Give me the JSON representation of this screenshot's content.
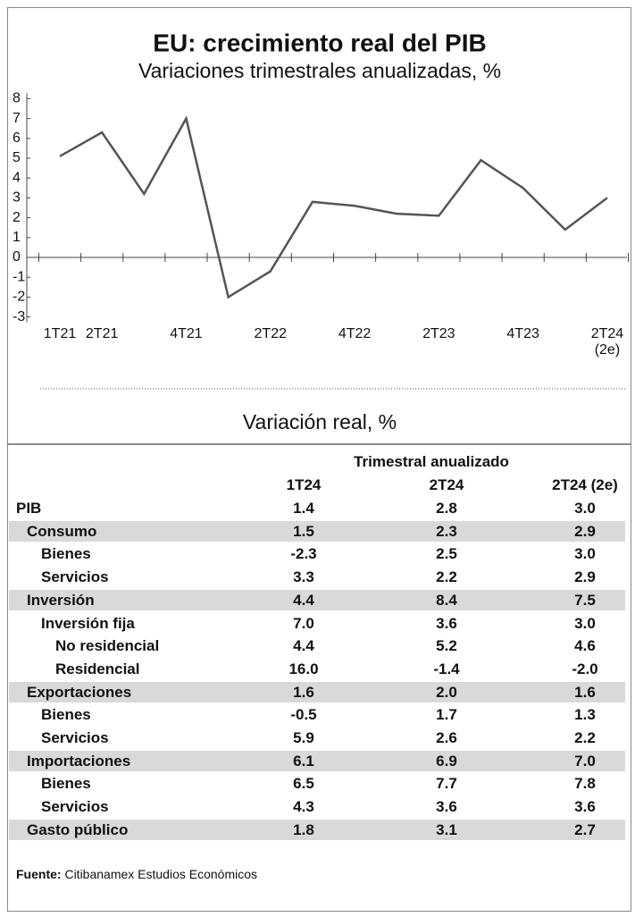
{
  "chart_data": {
    "type": "line",
    "title": "EU: crecimiento real del PIB",
    "subtitle": "Variaciones trimestrales anualizadas, %",
    "categories": [
      "1T21",
      "2T21",
      null,
      "4T21",
      null,
      "2T22",
      null,
      "4T22",
      null,
      "2T23",
      null,
      "4T23",
      null,
      "2T24 (2e)"
    ],
    "series": [
      {
        "name": "PIB",
        "color": "#555555",
        "values": [
          5.1,
          6.3,
          3.2,
          7.0,
          -2.0,
          -0.7,
          2.8,
          2.6,
          2.2,
          2.1,
          4.9,
          3.5,
          1.4,
          3.0
        ]
      }
    ],
    "ylim": [
      -3,
      8
    ],
    "yticks": [
      8,
      7,
      6,
      5,
      4,
      3,
      2,
      1,
      0,
      -1,
      -2,
      -3
    ]
  },
  "table": {
    "title": "Variación real, %",
    "group_header": "Trimestral anualizado",
    "columns": [
      "1T24",
      "2T24",
      "2T24 (2e)"
    ],
    "rows": [
      {
        "label": "PIB",
        "indent": 0,
        "shaded": false,
        "values": [
          "1.4",
          "2.8",
          "3.0"
        ]
      },
      {
        "label": "Consumo",
        "indent": 1,
        "shaded": true,
        "values": [
          "1.5",
          "2.3",
          "2.9"
        ]
      },
      {
        "label": "Bienes",
        "indent": 2,
        "shaded": false,
        "values": [
          "-2.3",
          "2.5",
          "3.0"
        ]
      },
      {
        "label": "Servicios",
        "indent": 2,
        "shaded": false,
        "values": [
          "3.3",
          "2.2",
          "2.9"
        ]
      },
      {
        "label": "Inversión",
        "indent": 1,
        "shaded": true,
        "values": [
          "4.4",
          "8.4",
          "7.5"
        ]
      },
      {
        "label": "Inversión fija",
        "indent": 2,
        "shaded": false,
        "values": [
          "7.0",
          "3.6",
          "3.0"
        ]
      },
      {
        "label": "No residencial",
        "indent": 3,
        "shaded": false,
        "values": [
          "4.4",
          "5.2",
          "4.6"
        ]
      },
      {
        "label": "Residencial",
        "indent": 3,
        "shaded": false,
        "values": [
          "16.0",
          "-1.4",
          "-2.0"
        ]
      },
      {
        "label": "Exportaciones",
        "indent": 1,
        "shaded": true,
        "values": [
          "1.6",
          "2.0",
          "1.6"
        ]
      },
      {
        "label": "Bienes",
        "indent": 2,
        "shaded": false,
        "values": [
          "-0.5",
          "1.7",
          "1.3"
        ]
      },
      {
        "label": "Servicios",
        "indent": 2,
        "shaded": false,
        "values": [
          "5.9",
          "2.6",
          "2.2"
        ]
      },
      {
        "label": "Importaciones",
        "indent": 1,
        "shaded": true,
        "values": [
          "6.1",
          "6.9",
          "7.0"
        ]
      },
      {
        "label": "Bienes",
        "indent": 2,
        "shaded": false,
        "values": [
          "6.5",
          "7.7",
          "7.8"
        ]
      },
      {
        "label": "Servicios",
        "indent": 2,
        "shaded": false,
        "values": [
          "4.3",
          "3.6",
          "3.6"
        ]
      },
      {
        "label": "Gasto público",
        "indent": 1,
        "shaded": true,
        "values": [
          "1.8",
          "3.1",
          "2.7"
        ]
      }
    ]
  },
  "source": {
    "label": "Fuente:",
    "text": "Citibanamex Estudios Económicos"
  }
}
